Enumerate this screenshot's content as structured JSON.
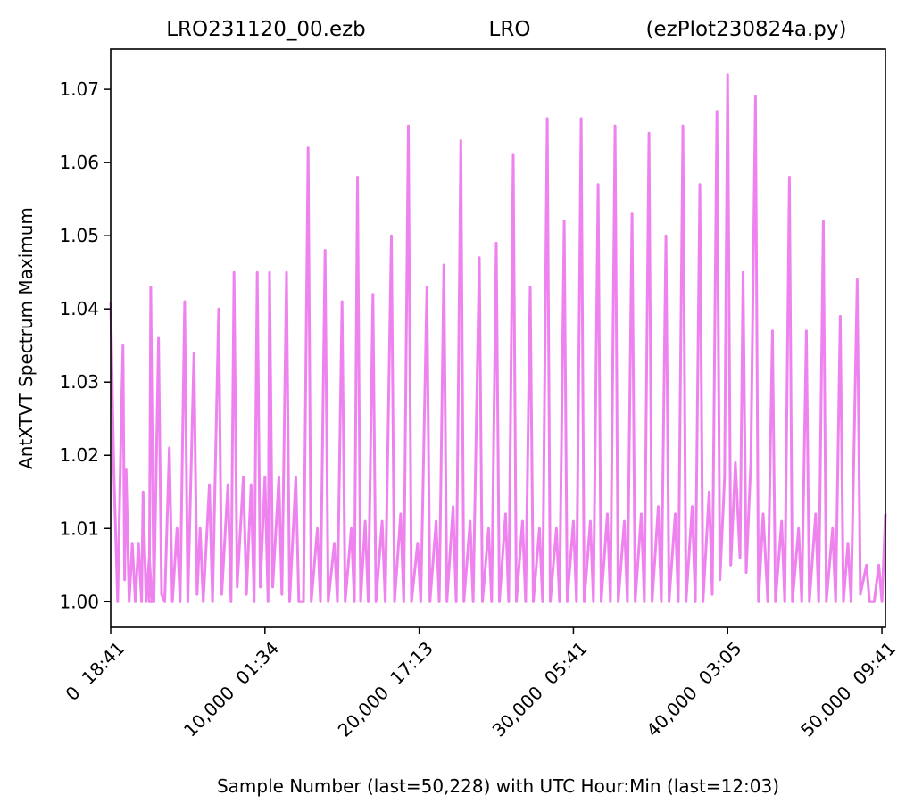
{
  "chart_data": {
    "type": "line",
    "title_parts": [
      "LRO231120_00.ezb",
      "LRO",
      "(ezPlot230824a.py)"
    ],
    "xlabel": "Sample Number (last=50,228) with UTC Hour:Min (last=12:03)",
    "ylabel": "AntXTVT Spectrum Maximum",
    "xlim": [
      0,
      50228
    ],
    "ylim": [
      0.9965,
      1.0755
    ],
    "x_ticks": [
      {
        "value": 0,
        "label": "0  18:41"
      },
      {
        "value": 10000,
        "label": "10,000  01:34"
      },
      {
        "value": 20000,
        "label": "20,000  17:13"
      },
      {
        "value": 30000,
        "label": "30,000  05:41"
      },
      {
        "value": 40000,
        "label": "40,000  03:05"
      },
      {
        "value": 50000,
        "label": "50,000  09:41"
      }
    ],
    "y_ticks": [
      {
        "value": 1.0,
        "label": "1.00"
      },
      {
        "value": 1.01,
        "label": "1.01"
      },
      {
        "value": 1.02,
        "label": "1.02"
      },
      {
        "value": 1.03,
        "label": "1.03"
      },
      {
        "value": 1.04,
        "label": "1.04"
      },
      {
        "value": 1.05,
        "label": "1.05"
      },
      {
        "value": 1.06,
        "label": "1.06"
      },
      {
        "value": 1.07,
        "label": "1.07"
      }
    ],
    "line_color": "#ee82ee",
    "grid": false,
    "legend": "none",
    "series": [
      {
        "values_xy": [
          [
            0,
            1.041
          ],
          [
            200,
            1.018
          ],
          [
            450,
            1.0
          ],
          [
            700,
            1.026
          ],
          [
            800,
            1.035
          ],
          [
            900,
            1.003
          ],
          [
            1000,
            1.018
          ],
          [
            1200,
            1.0
          ],
          [
            1400,
            1.008
          ],
          [
            1600,
            1.0
          ],
          [
            1800,
            1.008
          ],
          [
            2000,
            1.0
          ],
          [
            2100,
            1.015
          ],
          [
            2300,
            1.0
          ],
          [
            2500,
            1.006
          ],
          [
            2700,
            1.0
          ],
          [
            2500,
            1.0
          ],
          [
            2600,
            1.043
          ],
          [
            2800,
            1.0
          ],
          [
            3100,
            1.036
          ],
          [
            3300,
            1.001
          ],
          [
            3500,
            1.0
          ],
          [
            3800,
            1.021
          ],
          [
            4000,
            1.0
          ],
          [
            4300,
            1.01
          ],
          [
            4500,
            1.0
          ],
          [
            4800,
            1.041
          ],
          [
            5000,
            1.0
          ],
          [
            5400,
            1.034
          ],
          [
            5600,
            1.001
          ],
          [
            5800,
            1.01
          ],
          [
            6000,
            1.0
          ],
          [
            6400,
            1.016
          ],
          [
            6600,
            1.0
          ],
          [
            7000,
            1.04
          ],
          [
            7200,
            1.001
          ],
          [
            7600,
            1.016
          ],
          [
            7800,
            1.0
          ],
          [
            8000,
            1.045
          ],
          [
            8200,
            1.002
          ],
          [
            8600,
            1.017
          ],
          [
            8800,
            1.001
          ],
          [
            9100,
            1.016
          ],
          [
            9300,
            1.0
          ],
          [
            9500,
            1.045
          ],
          [
            9700,
            1.002
          ],
          [
            10000,
            1.017
          ],
          [
            10200,
            1.0
          ],
          [
            10300,
            1.045
          ],
          [
            10500,
            1.002
          ],
          [
            10900,
            1.017
          ],
          [
            11100,
            1.001
          ],
          [
            11400,
            1.045
          ],
          [
            11600,
            1.0
          ],
          [
            12000,
            1.017
          ],
          [
            12200,
            1.0
          ],
          [
            12500,
            1.0
          ],
          [
            12800,
            1.062
          ],
          [
            13000,
            1.0
          ],
          [
            13400,
            1.01
          ],
          [
            13600,
            1.0
          ],
          [
            13900,
            1.048
          ],
          [
            14100,
            1.0
          ],
          [
            14500,
            1.008
          ],
          [
            14700,
            1.0
          ],
          [
            15000,
            1.041
          ],
          [
            15200,
            1.0
          ],
          [
            15600,
            1.01
          ],
          [
            15800,
            1.0
          ],
          [
            16000,
            1.058
          ],
          [
            16200,
            1.0
          ],
          [
            16500,
            1.011
          ],
          [
            16700,
            1.0
          ],
          [
            17000,
            1.042
          ],
          [
            17200,
            1.0
          ],
          [
            17600,
            1.011
          ],
          [
            17800,
            1.0
          ],
          [
            18200,
            1.05
          ],
          [
            18400,
            1.0
          ],
          [
            18800,
            1.012
          ],
          [
            19000,
            1.0
          ],
          [
            19300,
            1.065
          ],
          [
            19500,
            1.0
          ],
          [
            19900,
            1.008
          ],
          [
            20100,
            1.0
          ],
          [
            20500,
            1.043
          ],
          [
            20700,
            1.0
          ],
          [
            21100,
            1.011
          ],
          [
            21300,
            1.0
          ],
          [
            21600,
            1.046
          ],
          [
            21800,
            1.0
          ],
          [
            22200,
            1.013
          ],
          [
            22400,
            1.0
          ],
          [
            22700,
            1.063
          ],
          [
            22900,
            1.0
          ],
          [
            23300,
            1.011
          ],
          [
            23500,
            1.0
          ],
          [
            23900,
            1.047
          ],
          [
            24100,
            1.0
          ],
          [
            24500,
            1.01
          ],
          [
            24700,
            1.0
          ],
          [
            25000,
            1.049
          ],
          [
            25200,
            1.0
          ],
          [
            25600,
            1.012
          ],
          [
            25800,
            1.0
          ],
          [
            26100,
            1.061
          ],
          [
            26300,
            1.0
          ],
          [
            26700,
            1.011
          ],
          [
            26900,
            1.0
          ],
          [
            27200,
            1.043
          ],
          [
            27400,
            1.0
          ],
          [
            27800,
            1.01
          ],
          [
            28000,
            1.0
          ],
          [
            28300,
            1.066
          ],
          [
            28500,
            1.0
          ],
          [
            28900,
            1.01
          ],
          [
            29100,
            1.0
          ],
          [
            29400,
            1.052
          ],
          [
            29600,
            1.0
          ],
          [
            30000,
            1.011
          ],
          [
            30200,
            1.0
          ],
          [
            30500,
            1.066
          ],
          [
            30700,
            1.0
          ],
          [
            31100,
            1.011
          ],
          [
            31300,
            1.0
          ],
          [
            31600,
            1.057
          ],
          [
            31800,
            1.0
          ],
          [
            32200,
            1.012
          ],
          [
            32400,
            1.0
          ],
          [
            32700,
            1.065
          ],
          [
            32900,
            1.0
          ],
          [
            33300,
            1.011
          ],
          [
            33500,
            1.0
          ],
          [
            33800,
            1.053
          ],
          [
            34000,
            1.0
          ],
          [
            34400,
            1.012
          ],
          [
            34600,
            1.0
          ],
          [
            34900,
            1.064
          ],
          [
            35100,
            1.0
          ],
          [
            35500,
            1.013
          ],
          [
            35700,
            1.0
          ],
          [
            36000,
            1.05
          ],
          [
            36200,
            1.0
          ],
          [
            36600,
            1.012
          ],
          [
            36800,
            1.0
          ],
          [
            37100,
            1.065
          ],
          [
            37300,
            1.0
          ],
          [
            37700,
            1.013
          ],
          [
            37900,
            1.0
          ],
          [
            38200,
            1.057
          ],
          [
            38400,
            1.0
          ],
          [
            38800,
            1.015
          ],
          [
            39000,
            1.001
          ],
          [
            39300,
            1.067
          ],
          [
            39500,
            1.003
          ],
          [
            39800,
            1.017
          ],
          [
            40000,
            1.072
          ],
          [
            40200,
            1.005
          ],
          [
            40500,
            1.019
          ],
          [
            40800,
            1.006
          ],
          [
            41000,
            1.045
          ],
          [
            41200,
            1.004
          ],
          [
            41500,
            1.019
          ],
          [
            41800,
            1.069
          ],
          [
            42000,
            1.0
          ],
          [
            42300,
            1.012
          ],
          [
            42600,
            1.0
          ],
          [
            42900,
            1.037
          ],
          [
            43100,
            1.0
          ],
          [
            43500,
            1.011
          ],
          [
            43700,
            1.0
          ],
          [
            44000,
            1.058
          ],
          [
            44200,
            1.0
          ],
          [
            44600,
            1.01
          ],
          [
            44800,
            1.0
          ],
          [
            45100,
            1.037
          ],
          [
            45300,
            1.0
          ],
          [
            45700,
            1.012
          ],
          [
            45900,
            1.0
          ],
          [
            46200,
            1.052
          ],
          [
            46400,
            1.0
          ],
          [
            46800,
            1.01
          ],
          [
            47000,
            1.0
          ],
          [
            47300,
            1.039
          ],
          [
            47500,
            1.0
          ],
          [
            47800,
            1.008
          ],
          [
            48000,
            1.0
          ],
          [
            48400,
            1.044
          ],
          [
            48600,
            1.001
          ],
          [
            49000,
            1.005
          ],
          [
            49200,
            1.0
          ],
          [
            49500,
            1.0
          ],
          [
            49800,
            1.005
          ],
          [
            50000,
            1.0
          ],
          [
            50228,
            1.012
          ]
        ]
      }
    ]
  }
}
